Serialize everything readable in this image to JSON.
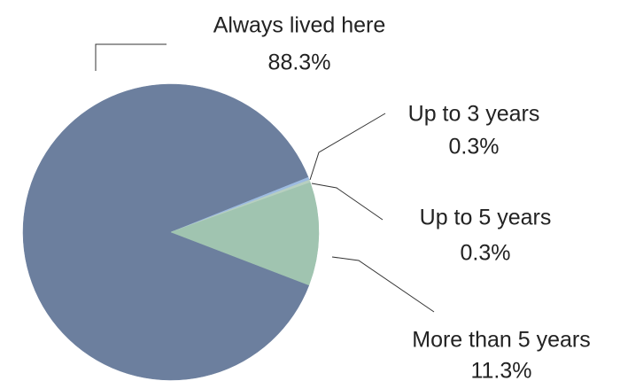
{
  "chart_data": {
    "type": "pie",
    "categories": [
      "Always lived here",
      "Up to 3 years",
      "Up to 5 years",
      "More than 5 years"
    ],
    "values": [
      88.3,
      0.3,
      0.3,
      11.3
    ],
    "value_labels": [
      "88.3%",
      "0.3%",
      "0.3%",
      "11.3%"
    ],
    "colors": [
      "#6c7f9e",
      "#9dbbe0",
      "#b7cfc0",
      "#a0c4b0"
    ]
  }
}
